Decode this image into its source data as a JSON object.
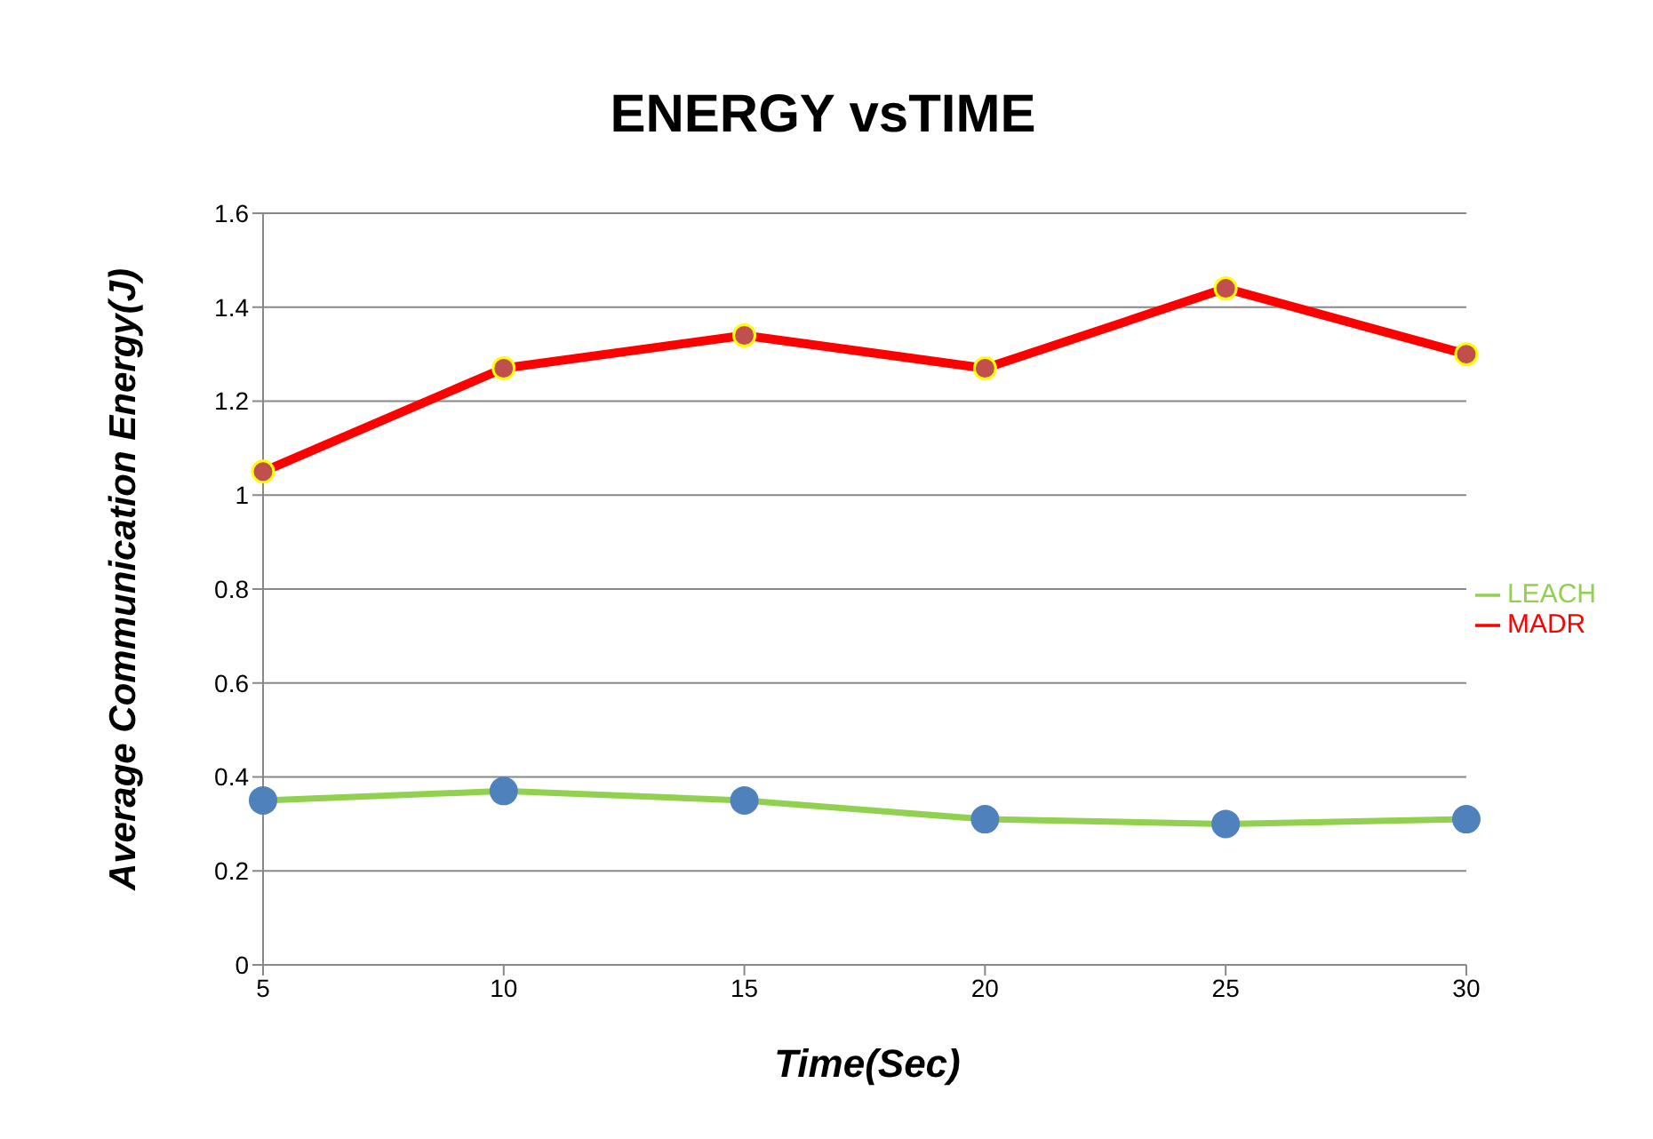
{
  "chart_data": {
    "type": "line",
    "title": "ENERGY vsTIME",
    "xlabel": "Time(Sec)",
    "ylabel": "Average Communication Energy(J)",
    "categories": [
      "5",
      "10",
      "15",
      "20",
      "25",
      "30"
    ],
    "series": [
      {
        "name": "MADR",
        "color": "#ff0000",
        "values": [
          1.05,
          1.27,
          1.34,
          1.27,
          1.44,
          1.3
        ]
      },
      {
        "name": "LEACH",
        "color": "#4f81bd",
        "values": [
          0.35,
          0.37,
          0.35,
          0.31,
          0.3,
          0.31
        ]
      }
    ],
    "ylim": [
      0,
      1.6
    ],
    "yticks": [
      0,
      0.2,
      0.4,
      0.6,
      0.8,
      1,
      1.2,
      1.4,
      1.6
    ],
    "grid": "y",
    "legend": "right",
    "marker": "circle"
  }
}
